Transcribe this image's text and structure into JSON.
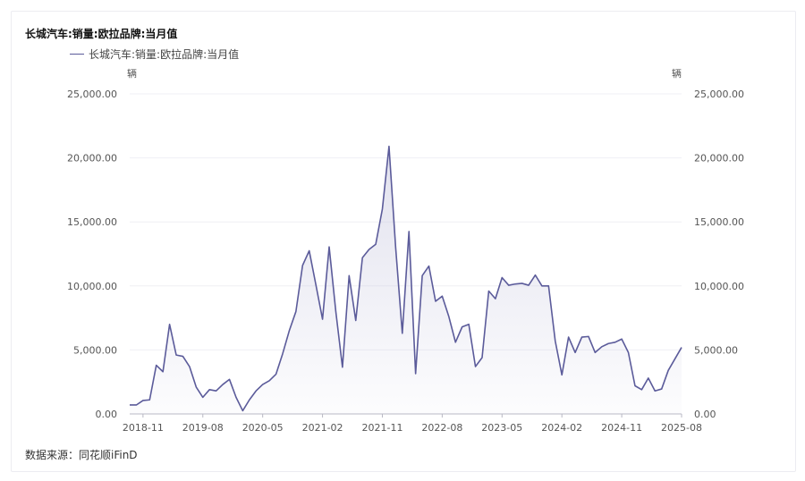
{
  "source_text": "数据来源：同花顺iFinD",
  "colors": {
    "line": "#5b5b9a",
    "fill_top": "#c9c9e0",
    "grid": "#efeff4",
    "axis": "#b8b8c4",
    "text": "#555555"
  },
  "chart_data": {
    "type": "area",
    "title": "长城汽车:销量:欧拉品牌:当月值",
    "legend": "长城汽车:销量:欧拉品牌:当月值",
    "y_unit_left": "辆",
    "y_unit_right": "辆",
    "ylim": [
      0,
      25000
    ],
    "y_ticks": [
      "0.00",
      "5,000.00",
      "10,000.00",
      "15,000.00",
      "20,000.00",
      "25,000.00"
    ],
    "x_ticks": [
      "2018-11",
      "2019-08",
      "2020-05",
      "2021-02",
      "2021-11",
      "2022-08",
      "2023-05",
      "2024-02",
      "2024-11",
      "2025-08"
    ],
    "grid": true,
    "legend_position": "top-left",
    "series": [
      {
        "name": "长城汽车:销量:欧拉品牌:当月值",
        "x": [
          "2018-09",
          "2018-10",
          "2018-11",
          "2018-12",
          "2019-01",
          "2019-02",
          "2019-03",
          "2019-04",
          "2019-05",
          "2019-06",
          "2019-07",
          "2019-08",
          "2019-09",
          "2019-10",
          "2019-11",
          "2019-12",
          "2020-01",
          "2020-02",
          "2020-03",
          "2020-04",
          "2020-05",
          "2020-06",
          "2020-07",
          "2020-08",
          "2020-09",
          "2020-10",
          "2020-11",
          "2020-12",
          "2021-01",
          "2021-02",
          "2021-03",
          "2021-04",
          "2021-05",
          "2021-06",
          "2021-07",
          "2021-08",
          "2021-09",
          "2021-10",
          "2021-11",
          "2021-12",
          "2022-01",
          "2022-02",
          "2022-03",
          "2022-04",
          "2022-05",
          "2022-06",
          "2022-07",
          "2022-08",
          "2022-09",
          "2022-10",
          "2022-11",
          "2022-12",
          "2023-01",
          "2023-02",
          "2023-03",
          "2023-04",
          "2023-05",
          "2023-06",
          "2023-07",
          "2023-08",
          "2023-09",
          "2023-10",
          "2023-11",
          "2023-12",
          "2024-01",
          "2024-02",
          "2024-03",
          "2024-04",
          "2024-05",
          "2024-06",
          "2024-07",
          "2024-08",
          "2024-09",
          "2024-10",
          "2024-11",
          "2024-12",
          "2025-01",
          "2025-02",
          "2025-03",
          "2025-04",
          "2025-05",
          "2025-06",
          "2025-07",
          "2025-08"
        ],
        "values": [
          700,
          700,
          1050,
          1100,
          3800,
          3300,
          7000,
          4600,
          4500,
          3700,
          2100,
          1300,
          1900,
          1800,
          2300,
          2700,
          1300,
          250,
          1100,
          1800,
          2300,
          2600,
          3100,
          4700,
          6500,
          8000,
          11600,
          12750,
          10100,
          7400,
          13050,
          8000,
          3650,
          10800,
          7300,
          12200,
          12850,
          13250,
          16000,
          20900,
          13000,
          6300,
          14250,
          3150,
          10800,
          11550,
          8800,
          9200,
          7600,
          5600,
          6800,
          7000,
          3700,
          4400,
          9600,
          9000,
          10650,
          10050,
          10150,
          10200,
          10050,
          10850,
          10000,
          10000,
          5700,
          3050,
          6000,
          4800,
          6000,
          6050,
          4800,
          5250,
          5500,
          5600,
          5850,
          4800,
          2200,
          1900,
          2800,
          1800,
          1950,
          3400,
          4300,
          5200
        ]
      }
    ]
  }
}
